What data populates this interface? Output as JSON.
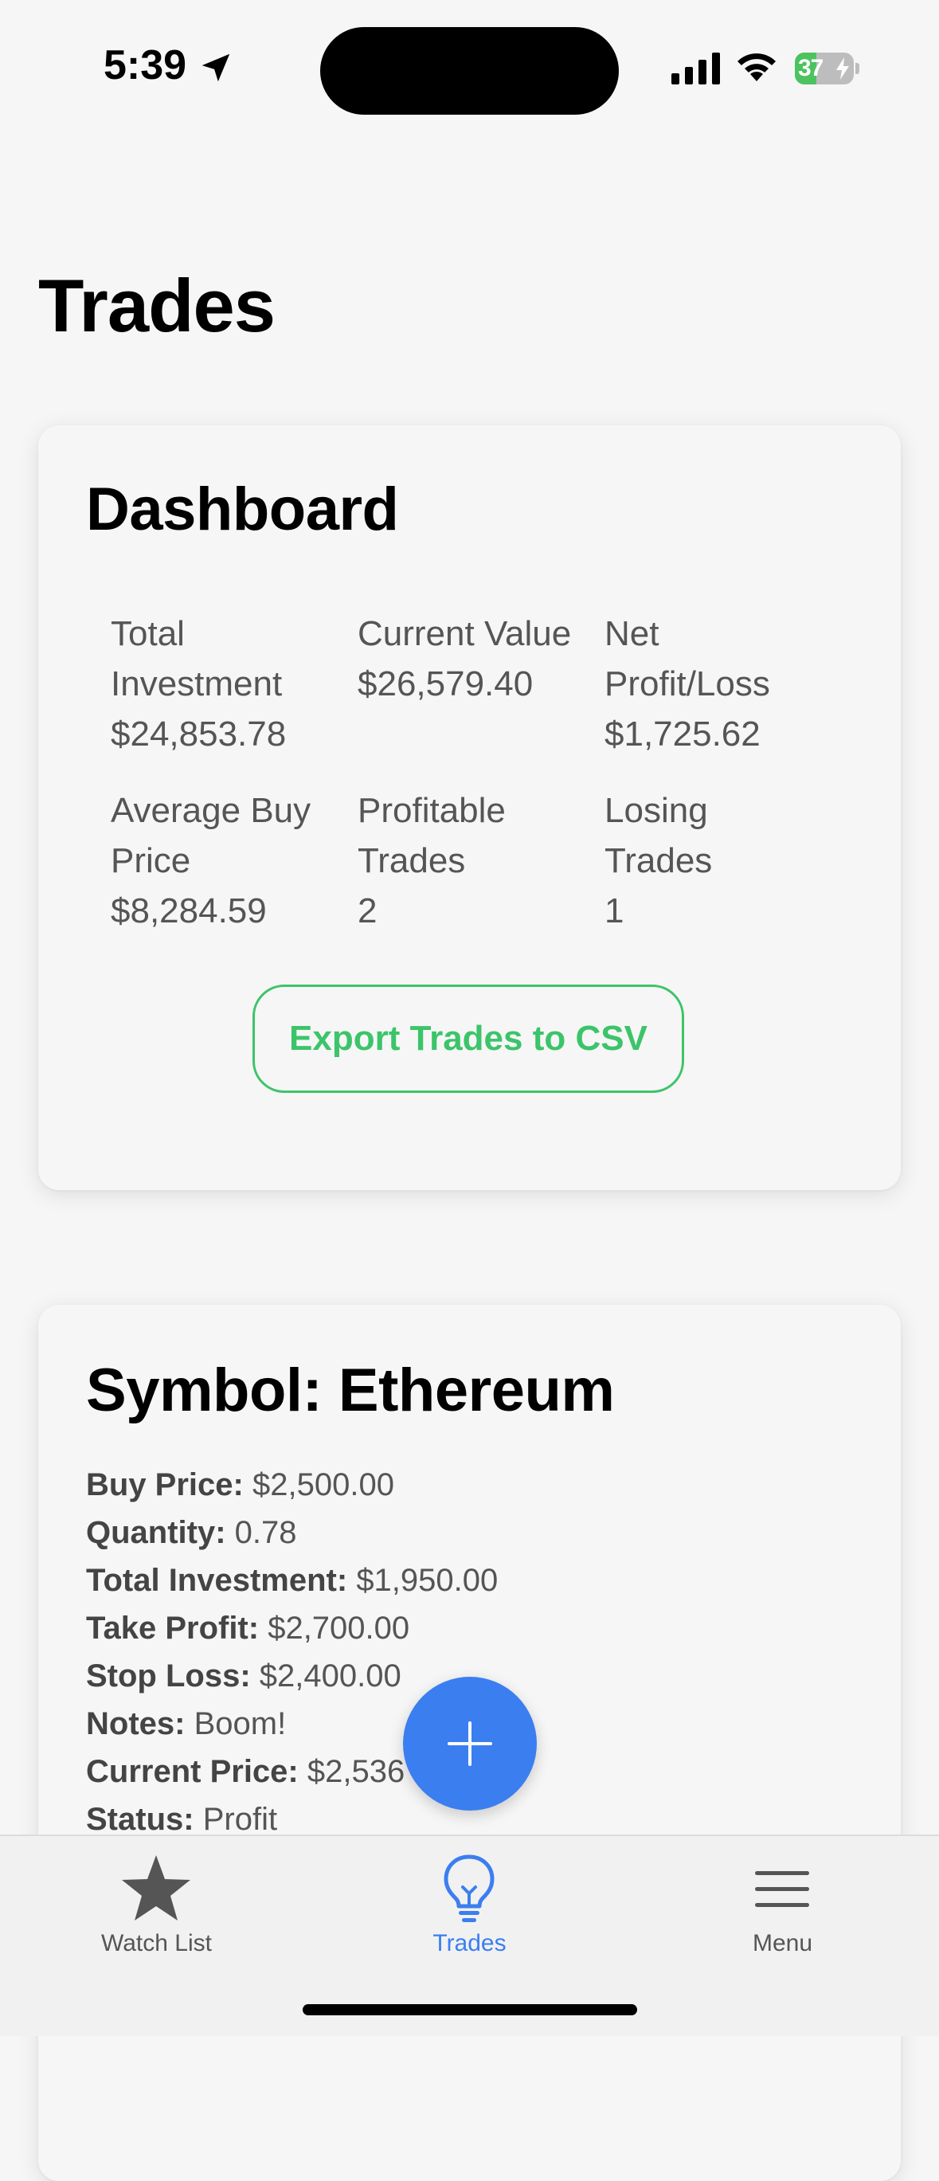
{
  "status_bar": {
    "time": "5:39",
    "battery_percent": "37",
    "battery_level": 0.37
  },
  "page": {
    "title": "Trades"
  },
  "dashboard": {
    "title": "Dashboard",
    "stats": [
      {
        "label": "Total Investment",
        "value": "$24,853.78"
      },
      {
        "label": "Current Value",
        "value": "$26,579.40"
      },
      {
        "label": "Net Profit/Loss",
        "value": "$1,725.62"
      },
      {
        "label": "Average Buy Price",
        "value": "$8,284.59"
      },
      {
        "label": "Profitable Trades",
        "value": "2"
      },
      {
        "label": "Losing Trades",
        "value": "1"
      }
    ],
    "export_label": "Export Trades to CSV"
  },
  "trade": {
    "title": "Symbol: Ethereum",
    "fields": [
      {
        "key": "Buy Price:",
        "value": "$2,500.00"
      },
      {
        "key": "Quantity:",
        "value": "0.78"
      },
      {
        "key": "Total Investment:",
        "value": "$1,950.00"
      },
      {
        "key": "Take Profit:",
        "value": "$2,700.00"
      },
      {
        "key": "Stop Loss:",
        "value": "$2,400.00"
      },
      {
        "key": "Notes:",
        "value": "Boom!"
      },
      {
        "key": "Current Price:",
        "value": "$2,536"
      },
      {
        "key": "Status:",
        "value": "Profit"
      }
    ]
  },
  "tabs": [
    {
      "label": "Watch List",
      "icon": "star-icon",
      "active": false
    },
    {
      "label": "Trades",
      "icon": "lightbulb-icon",
      "active": true
    },
    {
      "label": "Menu",
      "icon": "menu-icon",
      "active": false
    }
  ],
  "colors": {
    "accent": "#3b7ef0",
    "export": "#3cc46a",
    "battery": "#4cc35e"
  }
}
